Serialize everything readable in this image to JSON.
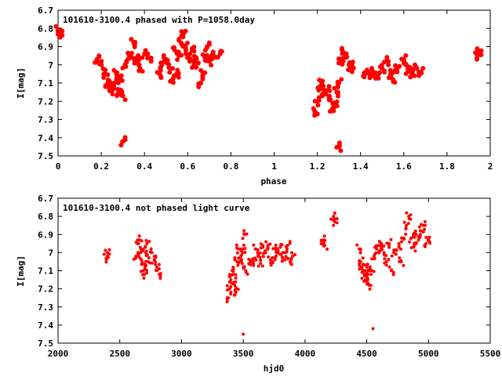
{
  "chart_data": [
    {
      "type": "scatter",
      "title": "101610-3100.4 phased with P=1058.0day",
      "xlabel": "phase",
      "ylabel": "I[mag]",
      "xlim": [
        0,
        2
      ],
      "ylim": [
        6.7,
        7.5
      ],
      "y_inverted": true,
      "xticks": [
        "0",
        "0.2",
        "0.4",
        "0.6",
        "0.8",
        "1",
        "1.2",
        "1.4",
        "1.6",
        "1.8",
        "2"
      ],
      "yticks": [
        "6.7",
        "6.8",
        "6.9",
        "7",
        "7.1",
        "7.2",
        "7.3",
        "7.4",
        "7.5"
      ],
      "grid": false,
      "marker_color": "#ff0000",
      "x": [
        0.0,
        0.01,
        0.18,
        0.2,
        0.22,
        0.23,
        0.24,
        0.25,
        0.26,
        0.27,
        0.28,
        0.29,
        0.3,
        0.31,
        0.33,
        0.35,
        0.36,
        0.37,
        0.38,
        0.4,
        0.42,
        0.47,
        0.48,
        0.5,
        0.52,
        0.53,
        0.54,
        0.55,
        0.56,
        0.57,
        0.58,
        0.59,
        0.6,
        0.62,
        0.63,
        0.64,
        0.66,
        0.67,
        0.68,
        0.69,
        0.7,
        0.72,
        0.75,
        1.19,
        1.2,
        1.21,
        1.22,
        1.23,
        1.25,
        1.26,
        1.27,
        1.28,
        1.29,
        1.3,
        1.31,
        1.32,
        1.33,
        1.35,
        1.36,
        1.42,
        1.44,
        1.46,
        1.48,
        1.5,
        1.52,
        1.54,
        1.55,
        1.57,
        1.6,
        1.61,
        1.62,
        1.64,
        1.66,
        1.68,
        1.94,
        1.95,
        0.3,
        1.3
      ],
      "y": [
        6.81,
        6.83,
        6.97,
        7.0,
        7.05,
        7.1,
        7.12,
        7.14,
        7.1,
        7.05,
        7.15,
        7.08,
        7.17,
        7.0,
        6.95,
        6.88,
        6.97,
        6.98,
        7.02,
        6.94,
        6.96,
        7.05,
        7.0,
        6.97,
        7.02,
        7.08,
        6.92,
        7.05,
        6.95,
        6.88,
        6.83,
        6.9,
        6.96,
        6.92,
        7.0,
        6.97,
        7.1,
        7.05,
        6.96,
        6.9,
        6.98,
        6.95,
        6.94,
        7.26,
        7.2,
        7.12,
        7.1,
        7.15,
        7.14,
        7.19,
        7.24,
        7.22,
        7.15,
        7.1,
        6.98,
        6.93,
        6.96,
        7.02,
        7.0,
        7.05,
        7.05,
        7.04,
        7.06,
        7.02,
        6.98,
        7.05,
        7.08,
        7.02,
        6.97,
        7.0,
        7.03,
        7.05,
        7.02,
        7.04,
        6.95,
        6.93,
        7.42,
        7.45
      ]
    },
    {
      "type": "scatter",
      "title": "101610-3100.4 not phased light curve",
      "xlabel": "hjd0",
      "ylabel": "I[mag]",
      "xlim": [
        2000,
        5500
      ],
      "ylim": [
        6.7,
        7.5
      ],
      "y_inverted": true,
      "xticks": [
        "2000",
        "2500",
        "3000",
        "3500",
        "4000",
        "4500",
        "5000",
        "5500"
      ],
      "yticks": [
        "6.7",
        "6.8",
        "6.9",
        "7",
        "7.1",
        "7.2",
        "7.3",
        "7.4",
        "7.5"
      ],
      "grid": false,
      "marker_color": "#ff0000",
      "x": [
        2390,
        2400,
        2630,
        2650,
        2660,
        2670,
        2680,
        2690,
        2700,
        2710,
        2720,
        2730,
        2760,
        2780,
        2800,
        2820,
        3380,
        3390,
        3400,
        3410,
        3420,
        3430,
        3440,
        3450,
        3460,
        3480,
        3490,
        3500,
        3510,
        3520,
        3560,
        3580,
        3600,
        3620,
        3640,
        3660,
        3680,
        3700,
        3720,
        3740,
        3760,
        3780,
        3800,
        3820,
        3840,
        3860,
        3880,
        3900,
        4150,
        4160,
        4230,
        4240,
        4440,
        4450,
        4460,
        4470,
        4480,
        4490,
        4500,
        4510,
        4520,
        4540,
        4560,
        4580,
        4600,
        4620,
        4640,
        4660,
        4680,
        4700,
        4720,
        4760,
        4780,
        4800,
        4820,
        4840,
        4860,
        4880,
        4900,
        4920,
        4940,
        4960,
        4980,
        5000
      ],
      "y": [
        7.03,
        7.0,
        7.02,
        6.95,
        6.93,
        7.0,
        7.05,
        7.1,
        7.12,
        7.0,
        6.95,
        7.05,
        7.0,
        7.04,
        7.08,
        7.12,
        7.25,
        7.2,
        7.15,
        7.1,
        7.12,
        7.18,
        7.22,
        7.05,
        6.98,
        7.02,
        7.06,
        6.98,
        6.9,
        7.1,
        7.05,
        7.05,
        6.98,
        7.02,
        7.06,
        6.97,
        7.0,
        6.96,
        7.04,
        7.05,
        6.98,
        7.0,
        6.97,
        7.03,
        7.0,
        6.96,
        7.05,
        7.02,
        6.93,
        6.96,
        6.8,
        6.83,
        6.98,
        7.05,
        7.08,
        7.1,
        7.12,
        7.15,
        7.08,
        7.12,
        7.18,
        7.1,
        7.02,
        6.98,
        6.96,
        6.97,
        7.0,
        7.05,
        6.95,
        7.1,
        7.0,
        6.97,
        7.05,
        6.92,
        6.85,
        6.8,
        6.92,
        6.97,
        6.9,
        6.93,
        6.88,
        6.85,
        6.95,
        6.93
      ]
    }
  ],
  "outliers_bottom_panel": {
    "x": [
      3500,
      4550
    ],
    "y": [
      7.45,
      7.42
    ]
  }
}
